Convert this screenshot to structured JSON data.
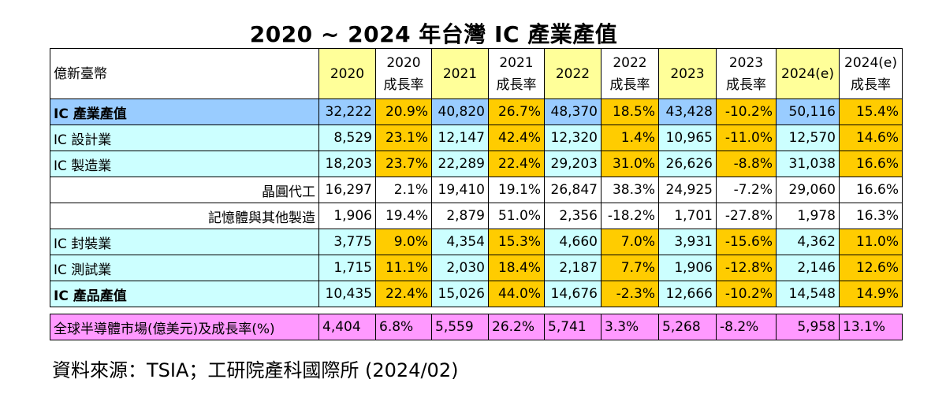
{
  "title": "2020 ~ 2024 年台灣 IC 產業產值",
  "header": {
    "unit": "億新臺幣",
    "cols": [
      {
        "line1": "2020",
        "line2": ""
      },
      {
        "line1": "2020",
        "line2": "成長率"
      },
      {
        "line1": "2021",
        "line2": ""
      },
      {
        "line1": "2021",
        "line2": "成長率"
      },
      {
        "line1": "2022",
        "line2": ""
      },
      {
        "line1": "2022",
        "line2": "成長率"
      },
      {
        "line1": "2023",
        "line2": ""
      },
      {
        "line1": "2023",
        "line2": "成長率"
      },
      {
        "line1": "2024(e)",
        "line2": ""
      },
      {
        "line1": "2024(e)",
        "line2": "成長率"
      }
    ]
  },
  "rows": [
    {
      "label": "IC 產業產值",
      "values": [
        "32,222",
        "20.9%",
        "40,820",
        "26.7%",
        "48,370",
        "18.5%",
        "43,428",
        "-10.2%",
        "50,116",
        "15.4%"
      ]
    },
    {
      "label": "IC 設計業",
      "values": [
        "8,529",
        "23.1%",
        "12,147",
        "42.4%",
        "12,320",
        "1.4%",
        "10,965",
        "-11.0%",
        "12,570",
        "14.6%"
      ]
    },
    {
      "label": "IC 製造業",
      "values": [
        "18,203",
        "23.7%",
        "22,289",
        "22.4%",
        "29,203",
        "31.0%",
        "26,626",
        "-8.8%",
        "31,038",
        "16.6%"
      ]
    },
    {
      "label": "晶圓代工",
      "values": [
        "16,297",
        "2.1%",
        "19,410",
        "19.1%",
        "26,847",
        "38.3%",
        "24,925",
        "-7.2%",
        "29,060",
        "16.6%"
      ]
    },
    {
      "label": "記憶體與其他製造",
      "values": [
        "1,906",
        "19.4%",
        "2,879",
        "51.0%",
        "2,356",
        "-18.2%",
        "1,701",
        "-27.8%",
        "1,978",
        "16.3%"
      ]
    },
    {
      "label": "IC 封裝業",
      "values": [
        "3,775",
        "9.0%",
        "4,354",
        "15.3%",
        "4,660",
        "7.0%",
        "3,931",
        "-15.6%",
        "4,362",
        "11.0%"
      ]
    },
    {
      "label": "IC 測試業",
      "values": [
        "1,715",
        "11.1%",
        "2,030",
        "18.4%",
        "2,187",
        "7.7%",
        "1,906",
        "-12.8%",
        "2,146",
        "12.6%"
      ]
    },
    {
      "label": "IC 產品產值",
      "values": [
        "10,435",
        "22.4%",
        "15,026",
        "44.0%",
        "14,676",
        "-2.3%",
        "12,666",
        "-10.2%",
        "14,548",
        "14.9%"
      ]
    },
    {
      "label": "全球半導體市場(億美元)及成長率(%)",
      "values": [
        "4,404",
        "6.8%",
        "5,559",
        "26.2%",
        "5,741",
        "3.3%",
        "5,268",
        "-8.2%",
        "5,958",
        "13.1%"
      ]
    }
  ],
  "footer": "資料來源：TSIA；工研院產科國際所  (2024/02)",
  "colors": {
    "yellow": "#ffff99",
    "blue": "#99ccff",
    "cyan": "#ccffff",
    "orange": "#ffcc00",
    "pink": "#ff99ff"
  }
}
